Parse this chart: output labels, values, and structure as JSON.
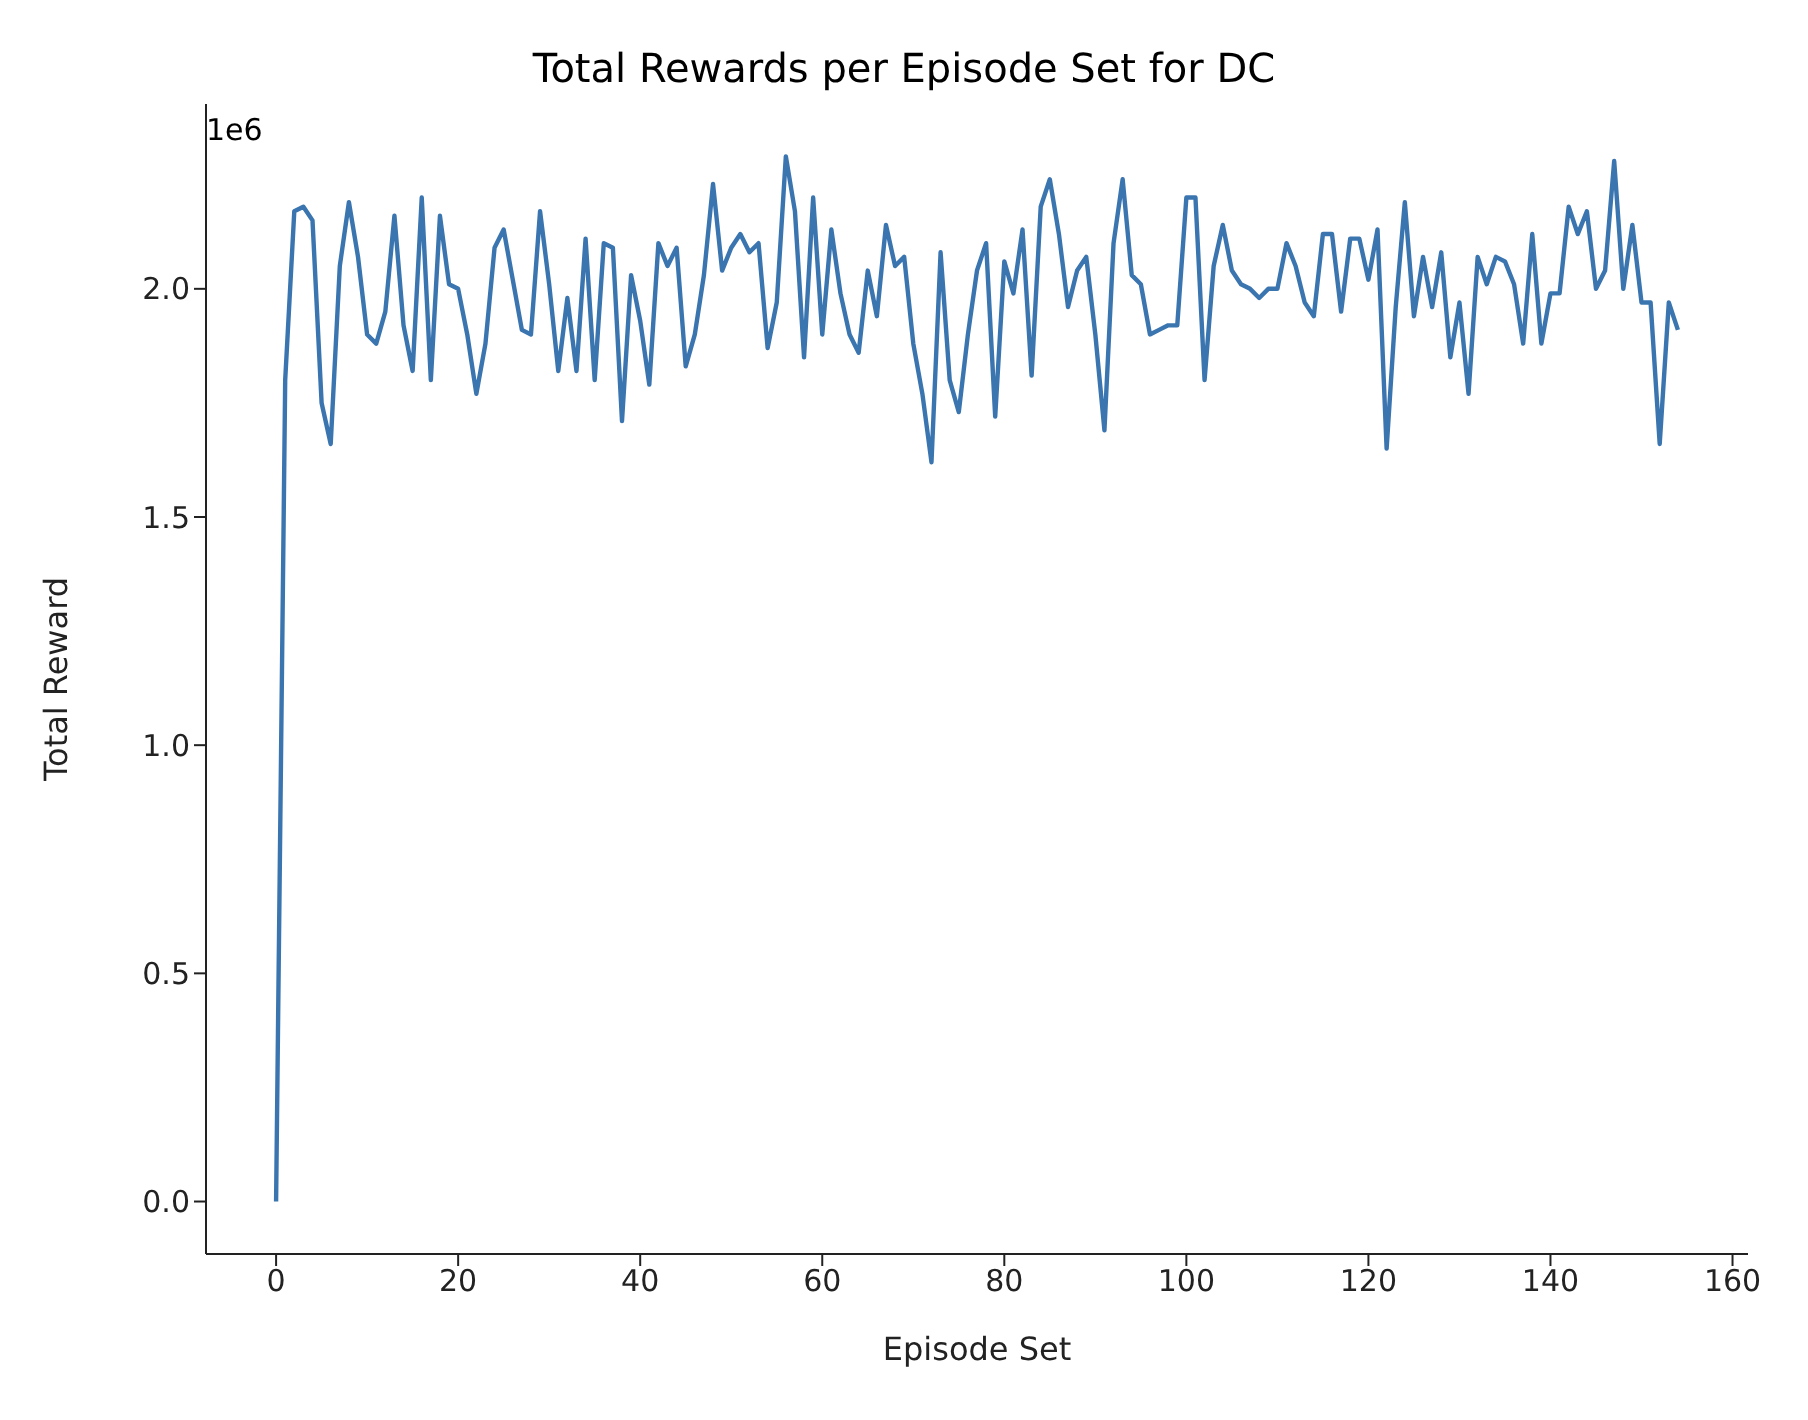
{
  "chart_data": {
    "type": "line",
    "title": "Total Rewards per Episode Set for DC",
    "xlabel": "Episode Set",
    "ylabel": "Total Reward",
    "annotations": [
      "1e6"
    ],
    "x": [
      0,
      1,
      2,
      3,
      4,
      5,
      6,
      7,
      8,
      9,
      10,
      11,
      12,
      13,
      14,
      15,
      16,
      17,
      18,
      19,
      20,
      21,
      22,
      23,
      24,
      25,
      26,
      27,
      28,
      29,
      30,
      31,
      32,
      33,
      34,
      35,
      36,
      37,
      38,
      39,
      40,
      41,
      42,
      43,
      44,
      45,
      46,
      47,
      48,
      49,
      50,
      51,
      52,
      53,
      54,
      55,
      56,
      57,
      58,
      59,
      60,
      61,
      62,
      63,
      64,
      65,
      66,
      67,
      68,
      69,
      70,
      71,
      72,
      73,
      74,
      75,
      76,
      77,
      78,
      79,
      80,
      81,
      82,
      83,
      84,
      85,
      86,
      87,
      88,
      89,
      90,
      91,
      92,
      93,
      94,
      95,
      96,
      97,
      98,
      99,
      100,
      101,
      102,
      103,
      104,
      105,
      106,
      107,
      108,
      109,
      110,
      111,
      112,
      113,
      114,
      115,
      116,
      117,
      118,
      119,
      120,
      121,
      122,
      123,
      124,
      125,
      126,
      127,
      128,
      129,
      130,
      131,
      132,
      133,
      134,
      135,
      136,
      137,
      138,
      139,
      140,
      141,
      142,
      143,
      144,
      145,
      146,
      147,
      148,
      149,
      150,
      151,
      152,
      153,
      154
    ],
    "series": [
      {
        "color": "#3a75b0",
        "values": [
          0.0,
          1.8,
          2.17,
          2.18,
          2.15,
          1.75,
          1.66,
          2.05,
          2.19,
          2.07,
          1.9,
          1.88,
          1.95,
          2.16,
          1.92,
          1.82,
          2.2,
          1.8,
          2.16,
          2.01,
          2.0,
          1.9,
          1.77,
          1.88,
          2.09,
          2.13,
          2.02,
          1.91,
          1.9,
          2.17,
          2.01,
          1.82,
          1.98,
          1.82,
          2.11,
          1.8,
          2.1,
          2.09,
          1.71,
          2.03,
          1.93,
          1.79,
          2.1,
          2.05,
          2.09,
          1.83,
          1.9,
          2.03,
          2.23,
          2.04,
          2.09,
          2.12,
          2.08,
          2.1,
          1.87,
          1.97,
          2.29,
          2.17,
          1.85,
          2.2,
          1.9,
          2.13,
          1.99,
          1.9,
          1.86,
          2.04,
          1.94,
          2.14,
          2.05,
          2.07,
          1.88,
          1.77,
          1.62,
          2.08,
          1.8,
          1.73,
          1.9,
          2.04,
          2.1,
          1.72,
          2.06,
          1.99,
          2.13,
          1.81,
          2.18,
          2.24,
          2.12,
          1.96,
          2.04,
          2.07,
          1.9,
          1.69,
          2.1,
          2.24,
          2.03,
          2.01,
          1.9,
          1.91,
          1.92,
          1.92,
          2.2,
          2.2,
          1.8,
          2.05,
          2.14,
          2.04,
          2.01,
          2.0,
          1.98,
          2.0,
          2.0,
          2.1,
          2.05,
          1.97,
          1.94,
          2.12,
          2.12,
          1.95,
          2.11,
          2.11,
          2.02,
          2.13,
          1.65,
          1.96,
          2.19,
          1.94,
          2.07,
          1.96,
          2.08,
          1.85,
          1.97,
          1.77,
          2.07,
          2.01,
          2.07,
          2.06,
          2.01,
          1.88,
          2.12,
          1.88,
          1.99,
          1.99,
          2.18,
          2.12,
          2.17,
          2.0,
          2.04,
          2.28,
          2.0,
          2.14,
          1.97,
          1.97,
          1.66,
          1.97,
          1.91
        ]
      }
    ],
    "xlim": [
      -7.7,
      161.7
    ],
    "xticks": [
      0,
      20,
      40,
      60,
      80,
      100,
      120,
      140,
      160
    ],
    "ylim": [
      -0.115,
      2.405
    ],
    "yticks": [
      {
        "value": 0,
        "label": "0.0"
      },
      {
        "value": 0.5,
        "label": "0.5"
      },
      {
        "value": 1,
        "label": "1.0"
      },
      {
        "value": 1.5,
        "label": "1.5"
      },
      {
        "value": 2,
        "label": "2.0"
      }
    ],
    "grid": false,
    "legend": false,
    "marker": "none",
    "line_style": "solid"
  }
}
